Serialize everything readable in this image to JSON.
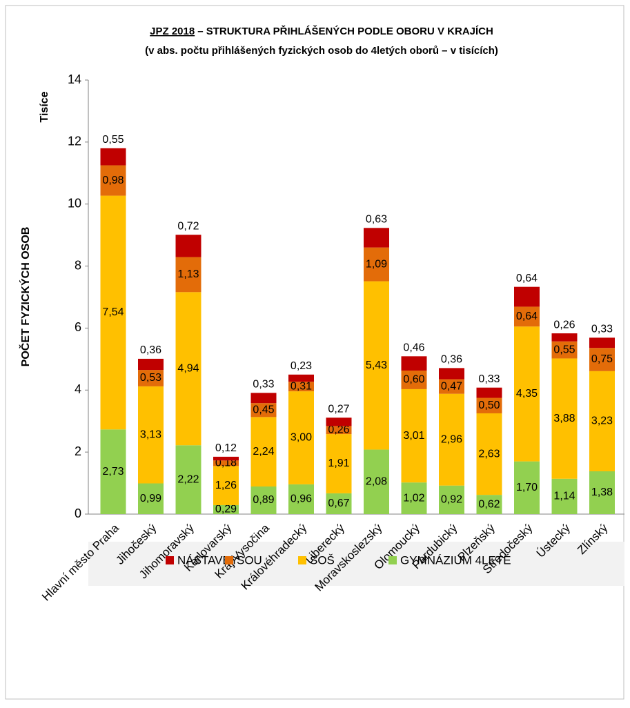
{
  "chart_data": {
    "type": "stacked_bar",
    "title_underlined": "JPZ 2018",
    "title": "– STRUKTURA PŘIHLÁŠENÝCH  PODLE OBORU V KRAJÍCH",
    "subtitle": "(v abs. počtu přihlášených fyzických osob do 4letých oborů – v tisících)",
    "y_label": "POČET FYZICKÝCH OSOB",
    "y_unit": "Tisíce",
    "categories": [
      "Hlavní město Praha",
      "Jihočeský",
      "Jihomoravský",
      "Karlovarský",
      "Kraj Vysočina",
      "Královéhradecký",
      "Liberecký",
      "Moravskoslezský",
      "Olomoucký",
      "Pardubický",
      "Plzeňský",
      "Středočeský",
      "Ústecký",
      "Zlínský"
    ],
    "series": [
      {
        "name": "GYMNÁZIUM 4LETÉ",
        "color": "#92d050",
        "values": [
          2.73,
          0.99,
          2.22,
          0.29,
          0.89,
          0.96,
          0.67,
          2.08,
          1.02,
          0.92,
          0.62,
          1.7,
          1.14,
          1.38
        ],
        "value_labels": [
          "2,73",
          "0,99",
          "2,22",
          "0,29",
          "0,89",
          "0,96",
          "0,67",
          "2,08",
          "1,02",
          "0,92",
          "0,62",
          "1,70",
          "1,14",
          "1,38"
        ]
      },
      {
        "name": "SOŠ",
        "color": "#ffc000",
        "values": [
          7.54,
          3.13,
          4.94,
          1.26,
          2.24,
          3.0,
          1.91,
          5.43,
          3.01,
          2.96,
          2.63,
          4.35,
          3.88,
          3.23
        ],
        "value_labels": [
          "7,54",
          "3,13",
          "4,94",
          "1,26",
          "2,24",
          "3,00",
          "1,91",
          "5,43",
          "3,01",
          "2,96",
          "2,63",
          "4,35",
          "3,88",
          "3,23"
        ]
      },
      {
        "name": "SOU",
        "color": "#e36c09",
        "values": [
          0.98,
          0.53,
          1.13,
          0.18,
          0.45,
          0.31,
          0.26,
          1.09,
          0.6,
          0.47,
          0.5,
          0.64,
          0.55,
          0.75
        ],
        "value_labels": [
          "0,98",
          "0,53",
          "1,13",
          "0,18",
          "0,45",
          "0,31",
          "0,26",
          "1,09",
          "0,60",
          "0,47",
          "0,50",
          "0,64",
          "0,55",
          "0,75"
        ]
      },
      {
        "name": "NÁSTAVBY",
        "color": "#c00000",
        "values": [
          0.55,
          0.36,
          0.72,
          0.12,
          0.33,
          0.23,
          0.27,
          0.63,
          0.46,
          0.36,
          0.33,
          0.64,
          0.26,
          0.33
        ],
        "value_labels": [
          "0,55",
          "0,36",
          "0,72",
          "0,12",
          "0,33",
          "0,23",
          "0,27",
          "0,63",
          "0,46",
          "0,36",
          "0,33",
          "0,64",
          "0,26",
          "0,33"
        ]
      }
    ],
    "ylim": [
      0,
      14
    ],
    "yticks": [
      0,
      2,
      4,
      6,
      8,
      10,
      12,
      14
    ],
    "legend": "bottom"
  }
}
